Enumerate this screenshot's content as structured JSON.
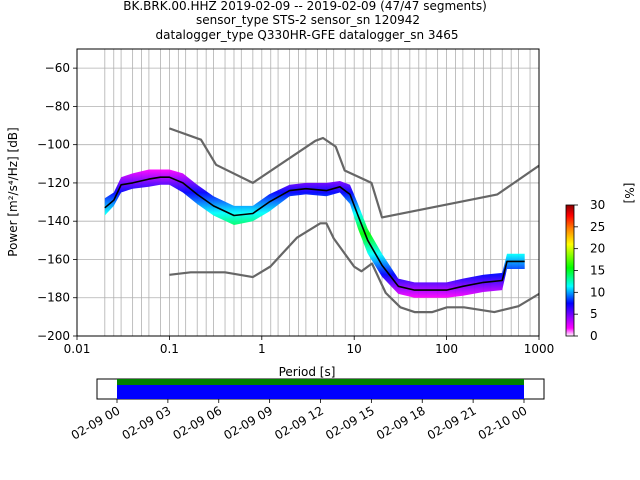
{
  "header": {
    "line1": "BK.BRK.00.HHZ   2019-02-09 -- 2019-02-09  (47/47 segments)",
    "line2": "sensor_type STS-2 sensor_sn 120942",
    "line3": "datalogger_type Q330HR-GFE datalogger_sn 3465"
  },
  "chart_data": [
    {
      "type": "heatmap",
      "xlabel": "Period [s]",
      "ylabel": "Power [m²/s⁴/Hz] [dB]",
      "x_scale": "log",
      "xlim": [
        0.01,
        1000
      ],
      "ylim": [
        -200,
        -50
      ],
      "x_ticks": [
        {
          "value": 0.01,
          "label": "0.01"
        },
        {
          "value": 0.1,
          "label": "0.1"
        },
        {
          "value": 1,
          "label": "1"
        },
        {
          "value": 10,
          "label": "10"
        },
        {
          "value": 100,
          "label": "100"
        },
        {
          "value": 1000,
          "label": "1000"
        }
      ],
      "y_ticks": [
        {
          "value": -60,
          "label": "−60"
        },
        {
          "value": -80,
          "label": "−80"
        },
        {
          "value": -100,
          "label": "−100"
        },
        {
          "value": -120,
          "label": "−120"
        },
        {
          "value": -140,
          "label": "−140"
        },
        {
          "value": -160,
          "label": "−160"
        },
        {
          "value": -180,
          "label": "−180"
        },
        {
          "value": -200,
          "label": "−200"
        }
      ],
      "grid": true,
      "vertical_gridlines_periods": [
        0.02,
        0.025,
        0.03,
        0.04,
        0.05,
        0.06,
        0.08,
        0.1,
        0.125,
        0.15,
        0.2,
        0.25,
        0.3,
        0.4,
        0.5,
        0.6,
        0.8,
        1,
        1.25,
        1.5,
        2,
        2.5,
        3,
        4,
        5,
        6,
        8,
        10,
        12.5,
        15,
        20,
        25,
        30,
        40,
        50,
        60,
        80,
        100,
        125,
        150,
        200,
        250,
        300,
        400,
        500,
        600,
        800
      ],
      "colorbar": {
        "label": "[%]",
        "min": 0,
        "max": 30,
        "ticks": [
          {
            "value": 0,
            "label": "0"
          },
          {
            "value": 5,
            "label": "5"
          },
          {
            "value": 10,
            "label": "10"
          },
          {
            "value": 15,
            "label": "15"
          },
          {
            "value": 20,
            "label": "20"
          },
          {
            "value": 25,
            "label": "25"
          },
          {
            "value": 30,
            "label": "30"
          }
        ],
        "colors": [
          "#ffffff",
          "#ff00ff",
          "#0000ff",
          "#00ffff",
          "#00ff00",
          "#ffff00",
          "#ff8000",
          "#ff0000",
          "#8b0000"
        ]
      },
      "noise_model_high": {
        "color": "#666666",
        "x": [
          0.1,
          0.22,
          0.32,
          0.8,
          3.8,
          4.6,
          6.3,
          7.9,
          15.4,
          20,
          354.8,
          1000
        ],
        "y": [
          -91.5,
          -97.4,
          -110.5,
          -120,
          -98,
          -96.5,
          -101,
          -113.5,
          -120,
          -138,
          -126,
          -111
        ]
      },
      "noise_model_low": {
        "color": "#666666",
        "x": [
          0.1,
          0.17,
          0.4,
          0.8,
          1.24,
          2.4,
          4.3,
          5,
          6,
          10,
          12,
          15.6,
          21.9,
          31.6,
          45,
          70,
          101,
          154,
          328,
          600,
          1000
        ],
        "y": [
          -168,
          -166.7,
          -166.7,
          -169.2,
          -163.7,
          -148.6,
          -141.1,
          -141.1,
          -149,
          -163.8,
          -166.2,
          -162.1,
          -177.5,
          -185,
          -187.5,
          -187.5,
          -185,
          -185,
          -187.5,
          -184.4,
          -178
        ]
      },
      "median": {
        "color": "#000000",
        "x": [
          0.02,
          0.025,
          0.03,
          0.04,
          0.06,
          0.08,
          0.1,
          0.14,
          0.2,
          0.3,
          0.5,
          0.8,
          1.2,
          2,
          3,
          5,
          7,
          9,
          11,
          14,
          20,
          30,
          45,
          70,
          100,
          150,
          250,
          400,
          450,
          500,
          700
        ],
        "y": [
          -133,
          -129,
          -121,
          -120,
          -118,
          -117,
          -117,
          -120,
          -126,
          -132,
          -137,
          -136,
          -130,
          -124,
          -123,
          -124,
          -122,
          -126,
          -137,
          -150,
          -163,
          -174,
          -176,
          -176,
          -176,
          -174,
          -172,
          -171,
          -161,
          -161,
          -161
        ]
      },
      "density_band": {
        "x": [
          0.02,
          0.025,
          0.03,
          0.04,
          0.06,
          0.08,
          0.1,
          0.14,
          0.2,
          0.3,
          0.5,
          0.8,
          1.2,
          2,
          3,
          5,
          7,
          9,
          11,
          14,
          20,
          30,
          45,
          70,
          100,
          150,
          250,
          400,
          450,
          500,
          700
        ],
        "y_low": [
          -137,
          -132,
          -125,
          -123,
          -122,
          -121,
          -121,
          -125,
          -131,
          -137,
          -142,
          -140,
          -135,
          -127,
          -126,
          -127,
          -125,
          -131,
          -144,
          -157,
          -169,
          -178,
          -180,
          -180,
          -180,
          -179,
          -177,
          -176,
          -165,
          -165,
          -165
        ],
        "y_high": [
          -128,
          -125,
          -117,
          -115,
          -113,
          -113,
          -113,
          -115,
          -121,
          -127,
          -132,
          -132,
          -126,
          -121,
          -120,
          -120,
          -119,
          -121,
          -131,
          -144,
          -157,
          -170,
          -172,
          -172,
          -172,
          -170,
          -168,
          -167,
          -157,
          -157,
          -157
        ]
      }
    },
    {
      "type": "timeline",
      "tick_labels": [
        "02-09 00",
        "02-09 03",
        "02-09 06",
        "02-09 09",
        "02-09 12",
        "02-09 15",
        "02-09 18",
        "02-09 21",
        "02-10 00"
      ],
      "bars": [
        {
          "color": "#008000",
          "fraction": 0.3
        },
        {
          "color": "#0000ff",
          "fraction": 0.7
        }
      ]
    }
  ]
}
